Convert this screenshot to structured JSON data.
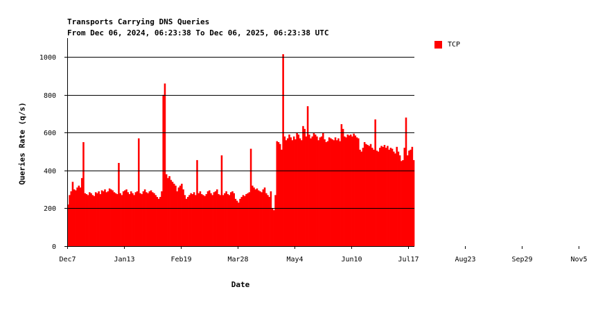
{
  "chart_data": {
    "type": "bar",
    "title": "Transports Carrying DNS Queries",
    "subtitle": "From Dec 06, 2024, 06:23:38 To Dec 06, 2025, 06:23:38 UTC",
    "xlabel": "Date",
    "ylabel": "Queries Rate (q/s)",
    "ylim": [
      0,
      1100
    ],
    "y_ticks": [
      0,
      200,
      400,
      600,
      800,
      1000
    ],
    "x_tick_labels": [
      "Dec7",
      "Jan13",
      "Feb19",
      "Mar28",
      "May4",
      "Jun10",
      "Jul17",
      "Aug23",
      "Sep29",
      "Nov5"
    ],
    "x_tick_day_index": [
      0,
      37,
      74,
      111,
      148,
      185,
      222,
      259,
      296,
      333
    ],
    "grid": "horizontal",
    "legend_position": "right",
    "series": [
      {
        "name": "TCP",
        "color": "#ff0000",
        "values": [
          220,
          270,
          290,
          340,
          300,
          295,
          310,
          320,
          310,
          360,
          550,
          280,
          275,
          270,
          285,
          280,
          270,
          265,
          285,
          280,
          290,
          275,
          295,
          290,
          300,
          285,
          290,
          305,
          300,
          295,
          285,
          280,
          275,
          440,
          280,
          270,
          290,
          295,
          300,
          285,
          275,
          290,
          280,
          270,
          285,
          290,
          570,
          280,
          275,
          290,
          300,
          285,
          280,
          290,
          295,
          285,
          280,
          270,
          260,
          250,
          260,
          290,
          800,
          860,
          380,
          360,
          370,
          350,
          340,
          330,
          320,
          290,
          310,
          320,
          330,
          300,
          270,
          250,
          260,
          270,
          280,
          275,
          285,
          270,
          455,
          280,
          290,
          275,
          270,
          265,
          275,
          290,
          295,
          280,
          270,
          285,
          290,
          300,
          275,
          270,
          480,
          270,
          280,
          290,
          275,
          270,
          285,
          290,
          280,
          250,
          240,
          230,
          250,
          260,
          270,
          265,
          275,
          280,
          285,
          515,
          320,
          310,
          300,
          305,
          295,
          290,
          285,
          300,
          310,
          280,
          270,
          260,
          290,
          200,
          190,
          270,
          555,
          550,
          540,
          510,
          1015,
          580,
          560,
          570,
          590,
          575,
          560,
          580,
          565,
          600,
          590,
          570,
          560,
          635,
          620,
          580,
          740,
          590,
          570,
          580,
          600,
          590,
          580,
          560,
          575,
          580,
          600,
          565,
          550,
          555,
          575,
          570,
          565,
          560,
          575,
          560,
          570,
          555,
          645,
          620,
          580,
          575,
          590,
          585,
          590,
          580,
          595,
          585,
          575,
          570,
          510,
          500,
          520,
          550,
          540,
          535,
          530,
          540,
          520,
          510,
          670,
          505,
          500,
          520,
          530,
          525,
          535,
          520,
          530,
          510,
          520,
          515,
          500,
          490,
          525,
          500,
          480,
          450,
          455,
          520,
          680,
          480,
          505,
          510,
          525,
          455
        ]
      }
    ]
  }
}
